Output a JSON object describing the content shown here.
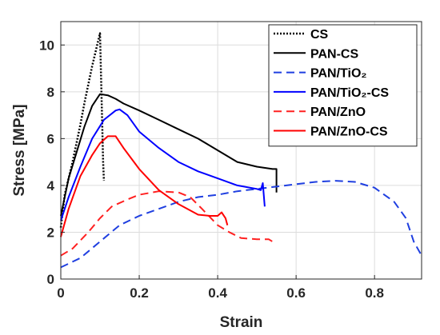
{
  "chart_data": {
    "type": "line",
    "title": "",
    "xlabel": "Strain",
    "ylabel": "Stress [MPa]",
    "xlim": [
      0,
      0.92
    ],
    "ylim": [
      0,
      11
    ],
    "xticks": [
      0,
      0.2,
      0.4,
      0.6,
      0.8
    ],
    "xtick_labels": [
      "0",
      "0.2",
      "0.4",
      "0.6",
      "0.8"
    ],
    "yticks": [
      0,
      2,
      4,
      6,
      8,
      10
    ],
    "ytick_labels": [
      "0",
      "2",
      "4",
      "6",
      "8",
      "10"
    ],
    "grid": true,
    "legend_position": "top-right",
    "series": [
      {
        "name": "CS",
        "color": "#000000",
        "style": "dotted",
        "points": [
          [
            0,
            2.2
          ],
          [
            0.01,
            3.6
          ],
          [
            0.02,
            4.3
          ],
          [
            0.03,
            5.0
          ],
          [
            0.04,
            5.8
          ],
          [
            0.05,
            6.6
          ],
          [
            0.06,
            7.5
          ],
          [
            0.07,
            8.3
          ],
          [
            0.08,
            9.1
          ],
          [
            0.09,
            9.8
          ],
          [
            0.1,
            10.5
          ],
          [
            0.105,
            7.0
          ],
          [
            0.108,
            5.0
          ],
          [
            0.11,
            4.2
          ]
        ]
      },
      {
        "name": "PAN-CS",
        "color": "#000000",
        "style": "solid",
        "points": [
          [
            0,
            2.7
          ],
          [
            0.02,
            4.3
          ],
          [
            0.04,
            5.4
          ],
          [
            0.06,
            6.5
          ],
          [
            0.08,
            7.4
          ],
          [
            0.1,
            7.9
          ],
          [
            0.12,
            7.85
          ],
          [
            0.14,
            7.7
          ],
          [
            0.16,
            7.5
          ],
          [
            0.2,
            7.2
          ],
          [
            0.25,
            6.8
          ],
          [
            0.3,
            6.4
          ],
          [
            0.35,
            6.0
          ],
          [
            0.4,
            5.5
          ],
          [
            0.45,
            5.0
          ],
          [
            0.5,
            4.8
          ],
          [
            0.54,
            4.7
          ],
          [
            0.55,
            4.7
          ],
          [
            0.55,
            3.7
          ]
        ]
      },
      {
        "name": "PAN/TiO₂",
        "color": "#1f3fe0",
        "style": "dashed",
        "points": [
          [
            0,
            0.5
          ],
          [
            0.05,
            0.9
          ],
          [
            0.1,
            1.6
          ],
          [
            0.15,
            2.3
          ],
          [
            0.2,
            2.7
          ],
          [
            0.25,
            3.0
          ],
          [
            0.3,
            3.3
          ],
          [
            0.35,
            3.5
          ],
          [
            0.4,
            3.6
          ],
          [
            0.45,
            3.75
          ],
          [
            0.5,
            3.85
          ],
          [
            0.55,
            3.95
          ],
          [
            0.6,
            4.05
          ],
          [
            0.65,
            4.15
          ],
          [
            0.7,
            4.2
          ],
          [
            0.75,
            4.15
          ],
          [
            0.8,
            3.9
          ],
          [
            0.85,
            3.3
          ],
          [
            0.88,
            2.6
          ],
          [
            0.9,
            1.6
          ],
          [
            0.92,
            1.0
          ]
        ]
      },
      {
        "name": "PAN/TiO₂-CS",
        "color": "#0000ff",
        "style": "solid",
        "points": [
          [
            0,
            2.5
          ],
          [
            0.02,
            3.5
          ],
          [
            0.05,
            4.8
          ],
          [
            0.08,
            6.0
          ],
          [
            0.11,
            6.8
          ],
          [
            0.14,
            7.2
          ],
          [
            0.15,
            7.25
          ],
          [
            0.17,
            7.0
          ],
          [
            0.2,
            6.3
          ],
          [
            0.25,
            5.6
          ],
          [
            0.3,
            5.0
          ],
          [
            0.35,
            4.6
          ],
          [
            0.4,
            4.3
          ],
          [
            0.45,
            4.0
          ],
          [
            0.5,
            3.85
          ],
          [
            0.51,
            3.8
          ],
          [
            0.515,
            4.1
          ],
          [
            0.52,
            3.1
          ]
        ]
      },
      {
        "name": "PAN/ZnO",
        "color": "#ff2020",
        "style": "dashed",
        "points": [
          [
            0,
            1.0
          ],
          [
            0.03,
            1.3
          ],
          [
            0.07,
            2.0
          ],
          [
            0.1,
            2.6
          ],
          [
            0.13,
            3.1
          ],
          [
            0.17,
            3.4
          ],
          [
            0.2,
            3.6
          ],
          [
            0.25,
            3.75
          ],
          [
            0.3,
            3.7
          ],
          [
            0.33,
            3.5
          ],
          [
            0.36,
            3.0
          ],
          [
            0.4,
            2.3
          ],
          [
            0.43,
            2.0
          ],
          [
            0.46,
            1.75
          ],
          [
            0.5,
            1.7
          ],
          [
            0.53,
            1.7
          ],
          [
            0.54,
            1.6
          ]
        ]
      },
      {
        "name": "PAN/ZnO-CS",
        "color": "#ff0000",
        "style": "solid",
        "points": [
          [
            0,
            1.8
          ],
          [
            0.02,
            3.0
          ],
          [
            0.05,
            4.4
          ],
          [
            0.08,
            5.3
          ],
          [
            0.1,
            5.8
          ],
          [
            0.12,
            6.1
          ],
          [
            0.14,
            6.1
          ],
          [
            0.16,
            5.6
          ],
          [
            0.2,
            4.7
          ],
          [
            0.25,
            3.8
          ],
          [
            0.3,
            3.2
          ],
          [
            0.35,
            2.75
          ],
          [
            0.38,
            2.7
          ],
          [
            0.4,
            2.7
          ],
          [
            0.41,
            2.85
          ],
          [
            0.42,
            2.6
          ],
          [
            0.425,
            2.3
          ]
        ]
      }
    ]
  }
}
